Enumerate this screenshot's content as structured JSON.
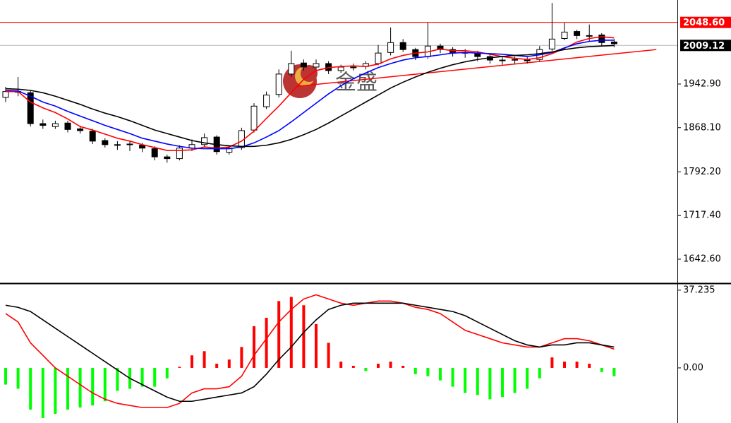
{
  "chart_data": [
    {
      "type": "candlestick",
      "watermark": "金盛",
      "open": [
        1920,
        1930,
        1928,
        1875,
        1870,
        1876,
        1866,
        1862,
        1846,
        1838,
        1840,
        1838,
        1832,
        1818,
        1815,
        1833,
        1839,
        1852,
        1826,
        1834,
        1864,
        1904,
        1925,
        1960,
        1979,
        1972,
        1978,
        1966,
        1972,
        1973,
        1978,
        1997,
        2014,
        2002,
        1990,
        2008,
        2002,
        1997,
        1996,
        1990,
        1984,
        1985,
        1983,
        1985,
        2003,
        2021,
        2033,
        2026,
        2027,
        2015
      ],
      "high": [
        1938,
        1955,
        1932,
        1882,
        1880,
        1880,
        1870,
        1866,
        1850,
        1845,
        1846,
        1842,
        1836,
        1822,
        1838,
        1848,
        1858,
        1855,
        1838,
        1868,
        1910,
        1930,
        1968,
        2000,
        1985,
        1985,
        1982,
        1976,
        1978,
        1982,
        2010,
        2040,
        2020,
        2005,
        2048,
        2012,
        2006,
        2003,
        2000,
        1994,
        1990,
        1990,
        1990,
        2008,
        2082,
        2048,
        2036,
        2045,
        2030,
        2020
      ],
      "low": [
        1912,
        1922,
        1870,
        1866,
        1866,
        1860,
        1858,
        1840,
        1834,
        1830,
        1828,
        1826,
        1812,
        1808,
        1812,
        1828,
        1834,
        1822,
        1822,
        1830,
        1860,
        1900,
        1920,
        1955,
        1966,
        1966,
        1960,
        1962,
        1966,
        1968,
        1975,
        1992,
        1998,
        1984,
        1986,
        1996,
        1990,
        1988,
        1982,
        1978,
        1976,
        1978,
        1978,
        1982,
        2000,
        2018,
        2020,
        2016,
        2008,
        2006
      ],
      "close": [
        1930,
        1930,
        1875,
        1872,
        1875,
        1865,
        1863,
        1845,
        1839,
        1839,
        1839,
        1833,
        1818,
        1815,
        1833,
        1839,
        1851,
        1827,
        1833,
        1863,
        1905,
        1924,
        1960,
        1978,
        1972,
        1978,
        1966,
        1972,
        1972,
        1978,
        1996,
        2014,
        2002,
        1990,
        2008,
        2002,
        1996,
        1996,
        1990,
        1984,
        1984,
        1984,
        1984,
        2002,
        2020,
        2032,
        2026,
        2026,
        2014,
        2012
      ],
      "up_color": "#ffffff",
      "down_color": "#000000",
      "series": [
        {
          "color": "#ff0000",
          "values": [
            1930,
            1930,
            1912,
            1902,
            1894,
            1883,
            1870,
            1864,
            1857,
            1850,
            1845,
            1839,
            1834,
            1829,
            1829,
            1830,
            1835,
            1833,
            1835,
            1845,
            1862,
            1884,
            1905,
            1928,
            1951,
            1966,
            1971,
            1973,
            1974,
            1973,
            1977,
            1986,
            1992,
            1996,
            1998,
            2003,
            2000,
            2000,
            1998,
            1994,
            1990,
            1987,
            1985,
            1988,
            1995,
            2004,
            2015,
            2021,
            2024,
            2022
          ]
        },
        {
          "color": "#0000ff",
          "values": [
            1932,
            1931,
            1922,
            1912,
            1905,
            1896,
            1888,
            1880,
            1872,
            1865,
            1858,
            1850,
            1845,
            1840,
            1836,
            1833,
            1832,
            1832,
            1832,
            1835,
            1842,
            1852,
            1863,
            1878,
            1894,
            1910,
            1926,
            1940,
            1952,
            1962,
            1971,
            1978,
            1984,
            1988,
            1990,
            1993,
            1996,
            1997,
            1996,
            1995,
            1994,
            1992,
            1990,
            1993,
            1997,
            2005,
            2012,
            2016,
            2018,
            2018
          ]
        },
        {
          "color": "#000000",
          "values": [
            1935,
            1934,
            1932,
            1928,
            1922,
            1915,
            1908,
            1900,
            1893,
            1887,
            1880,
            1872,
            1864,
            1858,
            1852,
            1846,
            1842,
            1839,
            1837,
            1836,
            1836,
            1838,
            1842,
            1848,
            1856,
            1865,
            1876,
            1888,
            1900,
            1912,
            1924,
            1936,
            1946,
            1955,
            1963,
            1970,
            1976,
            1981,
            1985,
            1988,
            1990,
            1992,
            1993,
            1995,
            1998,
            2002,
            2005,
            2007,
            2008,
            2009
          ]
        }
      ],
      "hlines": [
        {
          "value": 2048.6,
          "label": "2048.60",
          "color": "#ff0000",
          "line_color": "#ff0000"
        },
        {
          "value": 2009.12,
          "label": "2009.12",
          "color": "#000000",
          "line_color": "#c0c0c0"
        }
      ],
      "trendline": {
        "x": [
          23.5,
          52.4
        ],
        "y": [
          1939,
          2002
        ],
        "color": "#ff0000"
      },
      "ylim": [
        1602.6,
        2087
      ],
      "yticks": [
        {
          "value": 1942.9,
          "label": "1942.90"
        },
        {
          "value": 1868.1,
          "label": "1868.10"
        },
        {
          "value": 1792.2,
          "label": "1792.20"
        },
        {
          "value": 1717.4,
          "label": "1717.40"
        },
        {
          "value": 1642.6,
          "label": "1642.60"
        }
      ]
    },
    {
      "type": "macd",
      "histogram": {
        "up_color": "#ff0000",
        "down_color": "#00ff00",
        "values": [
          -8,
          -10,
          -20,
          -24,
          -22,
          -20,
          -19,
          -18,
          -16,
          -11,
          -10,
          -9,
          -9,
          -5,
          0.5,
          6,
          8,
          2,
          4,
          10,
          20,
          24,
          32,
          34,
          30,
          21,
          12,
          3,
          1,
          -1.5,
          2,
          3,
          1,
          -3,
          -4,
          -6,
          -9,
          -12,
          -13,
          -15,
          -14,
          -12,
          -10,
          -5,
          5,
          3,
          3,
          2,
          -2,
          -4
        ]
      },
      "series": [
        {
          "color": "#ff0000",
          "values": [
            26,
            22,
            12,
            6,
            0,
            -4,
            -8,
            -12,
            -15,
            -17,
            -18,
            -19,
            -19,
            -19,
            -17,
            -12,
            -10,
            -10,
            -9,
            -4,
            6,
            14,
            22,
            28,
            33,
            35,
            33,
            31,
            30,
            31,
            32,
            32,
            31,
            29,
            28,
            26,
            22,
            18,
            16,
            14,
            12,
            11,
            10,
            10,
            12,
            14,
            14,
            13,
            11,
            9
          ]
        },
        {
          "color": "#000000",
          "values": [
            30,
            29,
            27,
            23,
            19,
            15,
            11,
            7,
            3,
            -1,
            -5,
            -8,
            -11,
            -14,
            -16,
            -16,
            -15,
            -14,
            -13,
            -12,
            -9,
            -3,
            4,
            10,
            17,
            23,
            28,
            30,
            31,
            31,
            31,
            31,
            31,
            30,
            29,
            28,
            27,
            25,
            22,
            19,
            16,
            13,
            11,
            10,
            11,
            11,
            12,
            12,
            11,
            10
          ]
        }
      ],
      "ylim": [
        -26.4,
        39.9
      ],
      "yticks": [
        37.235,
        {
          "value": 0,
          "label": "0.00"
        }
      ]
    }
  ]
}
